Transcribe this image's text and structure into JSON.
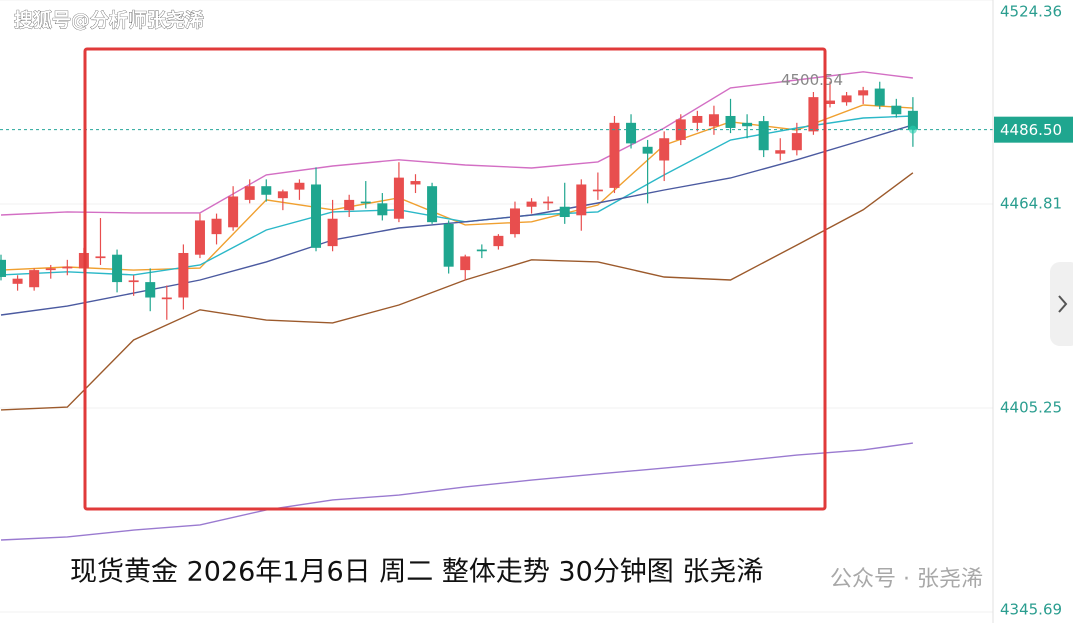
{
  "chart_data": {
    "type": "candlestick",
    "watermark": "搜狐号@分析师张尧浠",
    "caption": "现货黄金 2026年1月6日 周二 整体走势 30分钟图 张尧浠",
    "credit": "公众号 · 张尧浠",
    "up_color": "#e84e4e",
    "down_color": "#1fa68f",
    "open": [
      4448.5,
      4441.5,
      4440.5,
      4445.5,
      4446,
      4446,
      4449,
      4450,
      4442,
      4442,
      4437,
      4437.5,
      4450,
      4456,
      4458,
      4466,
      4470,
      4466.5,
      4469,
      4470.5,
      4452.5,
      4463,
      4465.5,
      4465,
      4460.5,
      4470.5,
      4470,
      4459,
      4445.5,
      4451.5,
      4452.5,
      4456,
      4464,
      4465,
      4464,
      4461.5,
      4468.5,
      4469.5,
      4488.5,
      4481.5,
      4477.5,
      4483.5,
      4488.5,
      4487.5,
      4490.5,
      4488.5,
      4489,
      4479.5,
      4480.5,
      4486,
      4494,
      4494.5,
      4496.5,
      4498.5,
      4493.5,
      4492
    ],
    "high": [
      4450,
      4444,
      4446,
      4447,
      4448.5,
      4452,
      4460.7,
      4451.5,
      4444,
      4446,
      4441,
      4453,
      4462,
      4462,
      4470,
      4472,
      4472,
      4469,
      4472,
      4475.5,
      4466,
      4467.5,
      4471.5,
      4468,
      4477,
      4473.5,
      4471,
      4460,
      4450,
      4453,
      4456,
      4465.5,
      4466.5,
      4467,
      4471,
      4472,
      4474,
      4490.5,
      4491,
      4483.5,
      4486,
      4491,
      4492,
      4493.5,
      4495.5,
      4491,
      4490.5,
      4484,
      4488.5,
      4497.5,
      4500.54,
      4497.5,
      4499,
      4500.5,
      4495.5,
      4496
    ],
    "low": [
      4442.5,
      4439.5,
      4439.5,
      4443,
      4444,
      4445,
      4447,
      4439,
      4438,
      4433.5,
      4431,
      4434,
      4449,
      4453,
      4457,
      4465,
      4465.5,
      4463,
      4466,
      4451,
      4451,
      4461,
      4463.5,
      4460,
      4459.5,
      4468,
      4459,
      4444.5,
      4442.5,
      4449,
      4451.5,
      4455,
      4462,
      4463,
      4459,
      4457,
      4466,
      4468,
      4481,
      4465,
      4471.5,
      4482,
      4486,
      4485,
      4485.5,
      4484,
      4478.5,
      4477.5,
      4479,
      4485,
      4493,
      4493.5,
      4494,
      4492.5,
      4490,
      4481.5
    ],
    "close": [
      4443.5,
      4443,
      4445.5,
      4446,
      4446.5,
      4450.5,
      4449.5,
      4442,
      4442.5,
      4437.5,
      4437.5,
      4450.5,
      4460,
      4460.5,
      4467,
      4470,
      4467.5,
      4468.5,
      4471,
      4452,
      4460.5,
      4466,
      4465,
      4461.5,
      4472.5,
      4471.5,
      4459.5,
      4446.5,
      4449.5,
      4451,
      4455.5,
      4463.5,
      4465.5,
      4465.5,
      4461,
      4470.5,
      4469,
      4488.5,
      4482.5,
      4479.5,
      4484,
      4489.5,
      4490.5,
      4491,
      4487,
      4487.5,
      4480.5,
      4480.5,
      4485.5,
      4496,
      4495,
      4496.5,
      4498,
      4493.5,
      4491,
      4486.5
    ],
    "lines": [
      {
        "color": "#d36fc4",
        "x": [
          0,
          4,
          8,
          12,
          16,
          20,
          24,
          28,
          32,
          36,
          40,
          44,
          48,
          52,
          55
        ],
        "values": [
          4461.6,
          4462.5,
          4462.2,
          4462.2,
          4473.3,
          4475.9,
          4477.7,
          4476.2,
          4475.3,
          4477.1,
          4487.0,
          4498.7,
          4501.0,
          4503.4,
          4501.6
        ]
      },
      {
        "color": "#9c5a2c",
        "x": [
          0,
          4,
          8,
          12,
          16,
          20,
          24,
          28,
          32,
          36,
          40,
          44,
          48,
          52,
          55
        ],
        "values": [
          4404.7,
          4405.5,
          4425.1,
          4433.9,
          4430.9,
          4430.1,
          4435.3,
          4442.6,
          4448.5,
          4447.9,
          4443.5,
          4442.6,
          4452.8,
          4463.1,
          4473.9
        ]
      },
      {
        "color": "#f0a030",
        "x": [
          0,
          4,
          8,
          12,
          16,
          20,
          24,
          28,
          32,
          36,
          40,
          44,
          48,
          52,
          55
        ],
        "values": [
          4445.5,
          4446.4,
          4445.5,
          4446.1,
          4466.0,
          4463.1,
          4466.6,
          4458.7,
          4459.6,
          4464.5,
          4482.0,
          4488.8,
          4486.4,
          4493.7,
          4492.8
        ]
      },
      {
        "color": "#2bb8c8",
        "x": [
          0,
          4,
          8,
          12,
          16,
          20,
          24,
          28,
          32,
          36,
          40,
          44,
          48,
          52,
          55
        ],
        "values": [
          4444.1,
          4445.0,
          4444.1,
          4447.0,
          4457.2,
          4462.5,
          4463.1,
          4459.6,
          4461.6,
          4462.5,
          4473.3,
          4483.5,
          4487.0,
          4489.9,
          4490.5
        ]
      },
      {
        "color": "#4b5aa0",
        "x": [
          0,
          4,
          8,
          12,
          16,
          20,
          24,
          28,
          32,
          36,
          40,
          44,
          48,
          52,
          55
        ],
        "values": [
          4432.4,
          4435.0,
          4438.8,
          4442.6,
          4447.9,
          4454.3,
          4457.8,
          4459.6,
          4461.6,
          4465.1,
          4468.9,
          4472.4,
          4477.7,
          4483.5,
          4487.9
        ]
      },
      {
        "color": "#9a7ad0",
        "x": [
          0,
          4,
          8,
          12,
          16,
          20,
          24,
          28,
          32,
          36,
          40,
          44,
          48,
          52,
          55
        ],
        "values": [
          4366.7,
          4367.6,
          4369.6,
          4371.1,
          4375.5,
          4378.4,
          4379.8,
          4382.2,
          4384.2,
          4386.0,
          4387.7,
          4389.5,
          4391.5,
          4393.0,
          4395.0
        ]
      }
    ],
    "max_label": {
      "value": 4500.54,
      "label": "4500.54"
    },
    "last_price": {
      "value": 4486.5,
      "label": "4486.50"
    },
    "ylim": [
      4342.47,
      4524.36
    ],
    "yticks": [
      4524.36,
      4464.81,
      4405.25,
      4345.69
    ],
    "grid": true
  }
}
